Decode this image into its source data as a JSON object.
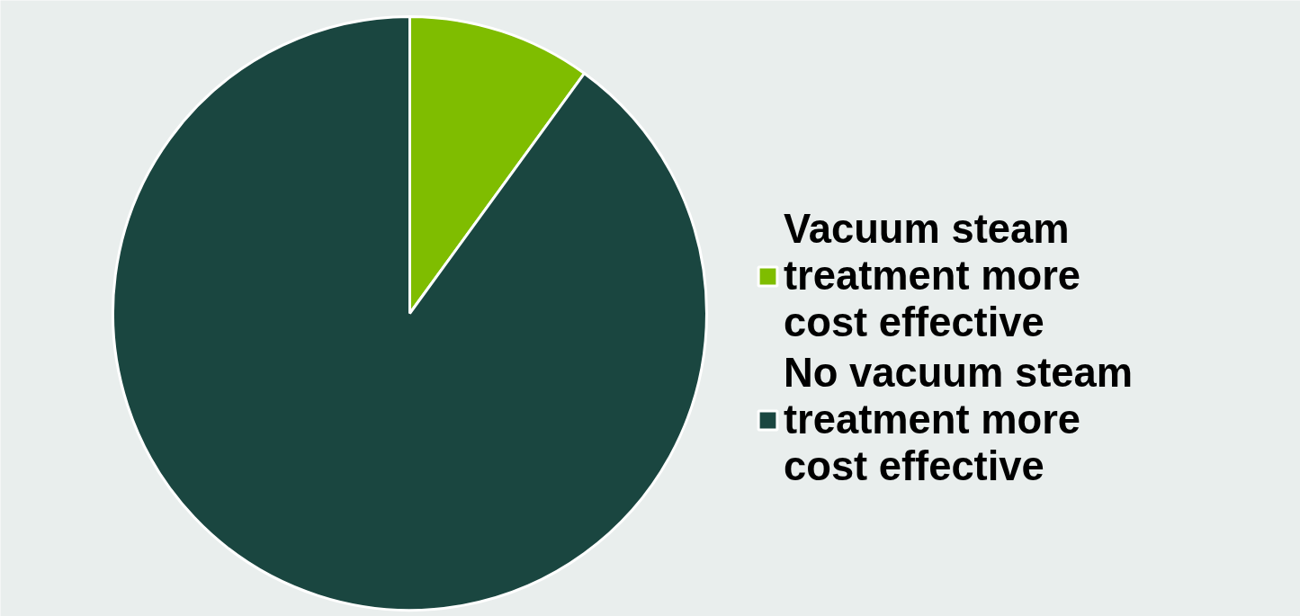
{
  "chart_data": {
    "type": "pie",
    "categories": [
      "Vacuum steam treatment more cost effective",
      "No vacuum steam treatment more cost effective"
    ],
    "values": [
      10,
      90
    ],
    "colors": [
      "#7fbd00",
      "#1a4640"
    ],
    "legend": "right"
  }
}
